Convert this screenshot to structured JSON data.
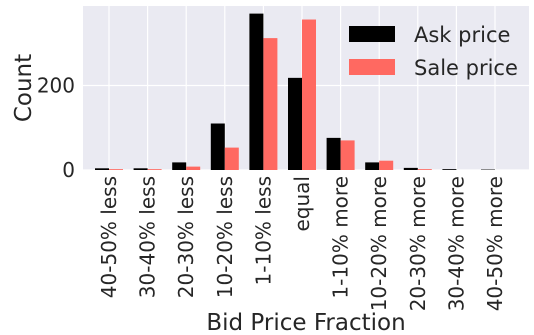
{
  "chart_data": {
    "type": "bar",
    "title": "",
    "xlabel": "Bid Price Fraction",
    "ylabel": "Count",
    "categories": [
      "40-50% less",
      "30-40% less",
      "20-30% less",
      "10-20% less",
      "1-10% less",
      "equal",
      "1-10% more",
      "10-20% more",
      "20-30% more",
      "30-40% more",
      "40-50% more"
    ],
    "series": [
      {
        "name": "Ask price",
        "color": "#000000",
        "values": [
          4,
          4,
          18,
          110,
          370,
          218,
          76,
          18,
          5,
          2,
          1
        ]
      },
      {
        "name": "Sale price",
        "color": "#ff6961",
        "values": [
          2,
          2,
          8,
          53,
          312,
          356,
          70,
          22,
          2,
          0,
          0
        ]
      }
    ],
    "yticks": [
      0,
      200
    ],
    "ylim": [
      0,
      388
    ],
    "grid": true,
    "legend_position": "top-right",
    "background": "#eaeaf2"
  }
}
